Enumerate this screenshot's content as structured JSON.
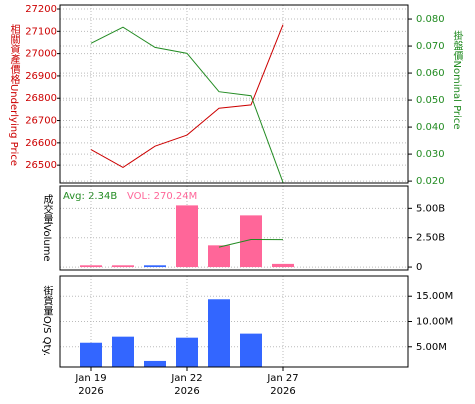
{
  "chart_data": [
    {
      "type": "line",
      "y_label": "相關資產價格Underlying Price",
      "y2_label": "掛盤價Nominal Price",
      "ylim": [
        26420,
        27218
      ],
      "yticks": [
        26500,
        26600,
        26700,
        26800,
        26900,
        27000,
        27100,
        27200
      ],
      "y2lim": [
        0.0193,
        0.0852
      ],
      "y2ticks": [
        {
          "value": 0.02,
          "label": "0.020"
        },
        {
          "value": 0.03,
          "label": "0.030"
        },
        {
          "value": 0.04,
          "label": "0.040"
        },
        {
          "value": 0.05,
          "label": "0.050"
        },
        {
          "value": 0.06,
          "label": "0.060"
        },
        {
          "value": 0.07,
          "label": "0.070"
        },
        {
          "value": 0.08,
          "label": "0.080"
        }
      ],
      "grid": true,
      "series": [
        {
          "color": "#cc0000",
          "values": [
            26570,
            26490,
            26585,
            26635,
            26755,
            26770,
            27130
          ]
        },
        {
          "color": "#228b22",
          "axis": "y2",
          "values": [
            0.071,
            0.077,
            0.0695,
            0.0673,
            0.0531,
            0.0516,
            0.0195
          ]
        }
      ]
    },
    {
      "type": "bar",
      "y_label": "成交量Volume",
      "avg_label": "Avg: 2.34B",
      "vol_label": "VOL: 270.24M",
      "ylim": [
        -250000000,
        6900000000
      ],
      "yticks": [
        0,
        {
          "value": 2500000000,
          "label": "2.50B"
        },
        {
          "value": 5000000000,
          "label": "5.00B"
        }
      ],
      "grid": true,
      "values": [
        150000000,
        150000000,
        150000000,
        5250000000,
        1850000000,
        4400000000,
        270240000
      ],
      "colors": [
        "#ff6699",
        "#ff6699",
        "#3366ff",
        "#ff6699",
        "#ff6699",
        "#ff6699",
        "#ff6699"
      ],
      "avg": {
        "color": "#228b22",
        "values": [
          null,
          null,
          null,
          null,
          1700000000,
          2350000000,
          2340000000
        ]
      }
    },
    {
      "type": "bar",
      "y_label": "街貨量O/S Qty.",
      "color": "#3366ff",
      "ylim": [
        1000000,
        19000000
      ],
      "yticks": [
        {
          "value": 5000000,
          "label": "5.00M"
        },
        {
          "value": 10000000,
          "label": "10.00M"
        },
        {
          "value": 15000000,
          "label": "15.00M"
        }
      ],
      "grid": true,
      "values": [
        5800000,
        7000000,
        2200000,
        6800000,
        14400000,
        7600000,
        null
      ],
      "categories": [
        "Jan 19",
        null,
        null,
        "Jan 22",
        null,
        null,
        "Jan 27"
      ],
      "category_years": [
        "2026",
        null,
        null,
        "2026",
        null,
        null,
        "2026"
      ]
    }
  ]
}
